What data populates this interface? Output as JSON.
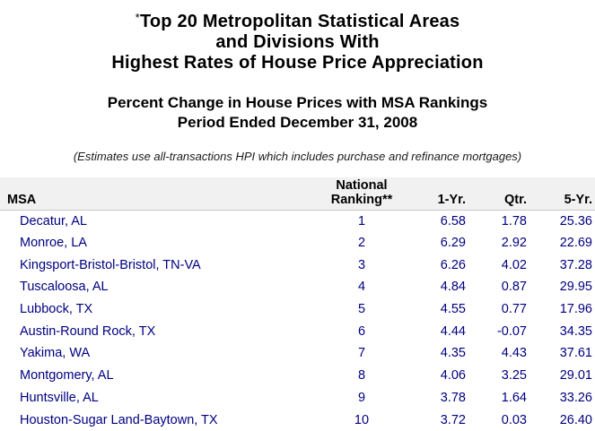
{
  "page": {
    "title_asterisk": "*",
    "title_lines": [
      "Top 20 Metropolitan Statistical Areas",
      "and Divisions With",
      "Highest Rates of House Price Appreciation"
    ],
    "subtitle_lines": [
      "Percent Change in House Prices with MSA Rankings",
      "Period Ended December 31, 2008"
    ],
    "note": "(Estimates use all-transactions HPI which includes purchase and refinance mortgages)"
  },
  "colors": {
    "row_text": "#000080",
    "header_bg": "#f1f1f1",
    "header_border": "#c9c9c9",
    "title_text": "#000000",
    "page_bg": "#ffffff"
  },
  "table": {
    "columns": {
      "msa": "MSA",
      "ranking_line1": "National",
      "ranking_line2": "Ranking**",
      "one_yr": "1-Yr.",
      "qtr": "Qtr.",
      "five_yr": "5-Yr."
    },
    "rows": [
      {
        "msa": "Decatur, AL",
        "ranking": "1",
        "one_yr": "6.58",
        "qtr": "1.78",
        "five_yr": "25.36"
      },
      {
        "msa": "Monroe, LA",
        "ranking": "2",
        "one_yr": "6.29",
        "qtr": "2.92",
        "five_yr": "22.69"
      },
      {
        "msa": "Kingsport-Bristol-Bristol, TN-VA",
        "ranking": "3",
        "one_yr": "6.26",
        "qtr": "4.02",
        "five_yr": "37.28"
      },
      {
        "msa": "Tuscaloosa, AL",
        "ranking": "4",
        "one_yr": "4.84",
        "qtr": "0.87",
        "five_yr": "29.95"
      },
      {
        "msa": "Lubbock, TX",
        "ranking": "5",
        "one_yr": "4.55",
        "qtr": "0.77",
        "five_yr": "17.96"
      },
      {
        "msa": "Austin-Round Rock, TX",
        "ranking": "6",
        "one_yr": "4.44",
        "qtr": "-0.07",
        "five_yr": "34.35"
      },
      {
        "msa": "Yakima, WA",
        "ranking": "7",
        "one_yr": "4.35",
        "qtr": "4.43",
        "five_yr": "37.61"
      },
      {
        "msa": "Montgomery, AL",
        "ranking": "8",
        "one_yr": "4.06",
        "qtr": "3.25",
        "five_yr": "29.01"
      },
      {
        "msa": "Huntsville, AL",
        "ranking": "9",
        "one_yr": "3.78",
        "qtr": "1.64",
        "five_yr": "33.26"
      },
      {
        "msa": "Houston-Sugar Land-Baytown, TX",
        "ranking": "10",
        "one_yr": "3.72",
        "qtr": "0.03",
        "five_yr": "26.40"
      }
    ]
  }
}
